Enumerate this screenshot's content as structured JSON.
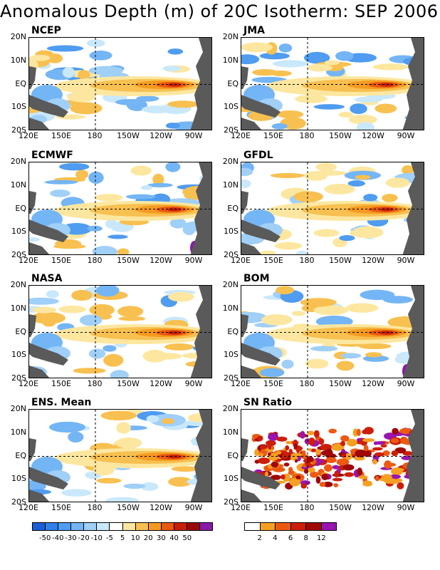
{
  "title": "Anomalous Depth (m) of 20C Isotherm: SEP 2006",
  "lat_labels": [
    "20N",
    "10N",
    "EQ",
    "10S",
    "20S"
  ],
  "lon_labels": [
    "120E",
    "150E",
    "180",
    "150W",
    "120W",
    "90W"
  ],
  "panels": [
    {
      "label": "NCEP"
    },
    {
      "label": "JMA"
    },
    {
      "label": "ECMWF"
    },
    {
      "label": "GFDL"
    },
    {
      "label": "NASA"
    },
    {
      "label": "BOM"
    },
    {
      "label": "ENS. Mean"
    },
    {
      "label": "SN Ratio"
    }
  ],
  "colorbar_depth": {
    "labels": [
      "-50",
      "-40",
      "-30",
      "-20",
      "-10",
      "-5",
      "5",
      "10",
      "20",
      "30",
      "40",
      "50"
    ],
    "colors": [
      "#1a5fd6",
      "#2f80e8",
      "#4f9cf0",
      "#74b5f5",
      "#a0cff8",
      "#c9e8fb",
      "#ffffff",
      "#fde7a0",
      "#f8c050",
      "#f59a20",
      "#e8580f",
      "#c81e0a",
      "#9a0a05",
      "#8a1aa8"
    ]
  },
  "colorbar_sn": {
    "labels": [
      "2",
      "4",
      "6",
      "8",
      "12"
    ],
    "colors": [
      "#ffffff",
      "#f5a020",
      "#ec5a12",
      "#cc1e0a",
      "#a00806",
      "#9a14b0"
    ]
  },
  "land_color": "#5a5a5a"
}
